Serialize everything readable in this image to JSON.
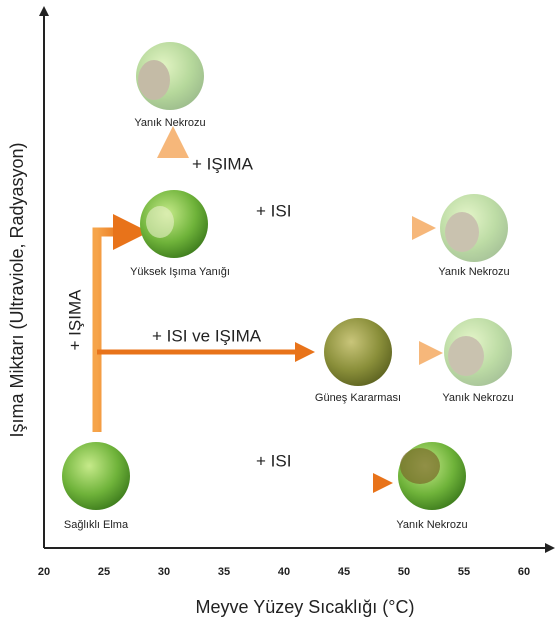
{
  "axes": {
    "x_label": "Meyve Yüzey Sıcaklığı (°C)",
    "y_label": "Işıma Miktarı (Ultraviole, Radyasyon)",
    "x_ticks": [
      20,
      25,
      30,
      35,
      40,
      45,
      50,
      55,
      60
    ]
  },
  "nodes": [
    {
      "label": "Sağlıklı Elma"
    },
    {
      "label": "Yanık Nekrozu"
    },
    {
      "label": "Yüksek Işıma Yanığı"
    },
    {
      "label": "Yanık Nekrozu"
    },
    {
      "label": "Yanık Nekrozu"
    },
    {
      "label": "Güneş Kararması"
    },
    {
      "label": "Yanık Nekrozu"
    }
  ],
  "arrows": [
    {
      "label": "+ IŞIMA"
    },
    {
      "label": "+ IŞIMA"
    },
    {
      "label": "+ ISI"
    },
    {
      "label": "+ ISI ve IŞIMA"
    },
    {
      "label": "+ ISI"
    }
  ]
}
